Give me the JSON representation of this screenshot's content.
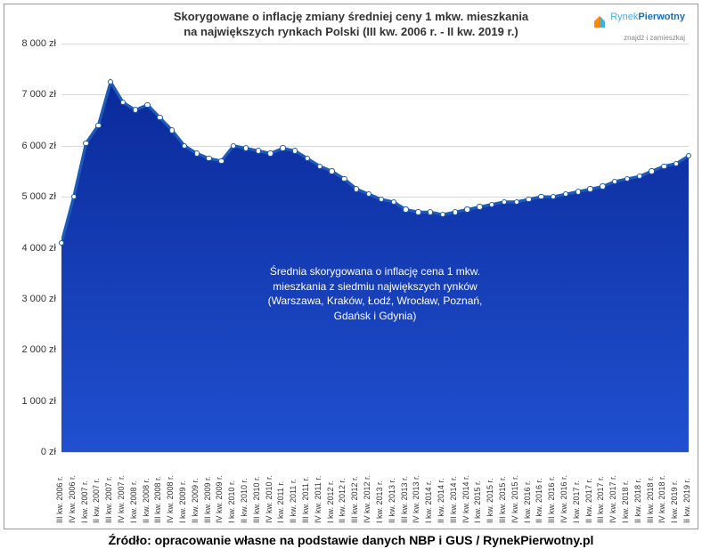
{
  "chart": {
    "title_line1": "Skorygowane o inflację zmiany średniej ceny 1 mkw. mieszkania",
    "title_line2": "na największych rynkach Polski (III kw. 2006 r. - II kw. 2019 r.)",
    "type": "area",
    "ylim": [
      0,
      8000
    ],
    "ytick_step": 1000,
    "y_tick_labels": [
      "0 zł",
      "1 000 zł",
      "2 000 zł",
      "3 000 zł",
      "4 000 zł",
      "5 000 zł",
      "6 000 zł",
      "7 000 zł",
      "8 000 zł"
    ],
    "x_labels": [
      "III kw. 2006 r.",
      "IV kw. 2006 r.",
      "I kw. 2007 r.",
      "II kw. 2007 r.",
      "III kw. 2007 r.",
      "IV kw. 2007 r.",
      "I kw. 2008 r.",
      "II kw. 2008 r.",
      "III kw. 2008 r.",
      "IV kw. 2008 r.",
      "I kw. 2009 r.",
      "II kw. 2009 r.",
      "III kw. 2009 r.",
      "IV kw. 2009 r.",
      "I kw. 2010 r.",
      "II kw. 2010 r.",
      "III kw. 2010 r.",
      "IV kw. 2010 r.",
      "I kw. 2011 r.",
      "II kw. 2011 r.",
      "III kw. 2011 r.",
      "IV kw. 2011 r.",
      "I kw. 2012 r.",
      "II kw. 2012 r.",
      "III kw. 2012 r.",
      "IV kw. 2012 r.",
      "I kw. 2013 r.",
      "II kw. 2013 r.",
      "III kw. 2013 r.",
      "IV kw. 2013 r.",
      "I kw. 2014 r.",
      "II kw. 2014 r.",
      "III kw. 2014 r.",
      "IV kw. 2014 r.",
      "I kw. 2015 r.",
      "II kw. 2015 r.",
      "III kw. 2015 r.",
      "IV kw. 2015 r.",
      "I kw. 2016 r.",
      "II kw. 2016 r.",
      "III kw. 2016 r.",
      "IV kw. 2016 r.",
      "I kw. 2017 r.",
      "II kw. 2017 r.",
      "III kw. 2017 r.",
      "IV kw. 2017 r.",
      "I kw. 2018 r.",
      "II kw. 2018 r.",
      "III kw. 2018 r.",
      "IV kw. 2018 r.",
      "I kw. 2019 r.",
      "II kw. 2019 r."
    ],
    "values": [
      4100,
      5000,
      6050,
      6400,
      7250,
      6850,
      6700,
      6800,
      6550,
      6300,
      6000,
      5850,
      5750,
      5700,
      6000,
      5950,
      5900,
      5850,
      5950,
      5900,
      5750,
      5600,
      5500,
      5350,
      5150,
      5050,
      4950,
      4900,
      4750,
      4700,
      4700,
      4650,
      4700,
      4750,
      4800,
      4850,
      4900,
      4900,
      4950,
      5000,
      5000,
      5050,
      5100,
      5150,
      5200,
      5300,
      5350,
      5400,
      5500,
      5600,
      5650,
      5800
    ],
    "fill_color": "#0a2a9a",
    "fill_gradient_bottom": "#2050d0",
    "marker_fill": "#ffffff",
    "marker_stroke": "#1e5bb8",
    "marker_radius": 3.2,
    "line_color": "#1e5bb8",
    "line_width": 1.5,
    "background_color": "#ffffff",
    "grid_color": "#d8d8d8",
    "legend_text_l1": "Średnia skorygowana o inflację cena 1 mkw.",
    "legend_text_l2": "mieszkania z siedmiu największych rynków",
    "legend_text_l3": "(Warszawa, Kraków, Łodź, Wrocław, Poznań,",
    "legend_text_l4": "Gdańsk i Gdynia)",
    "legend_top_pct": 54
  },
  "logo": {
    "brand_main": "Rynek",
    "brand_accent": "Pierwotny",
    "tagline": "znajdź i zamieszkaj"
  },
  "source": "Źródło: opracowanie własne na podstawie danych NBP i GUS / RynekPierwotny.pl"
}
